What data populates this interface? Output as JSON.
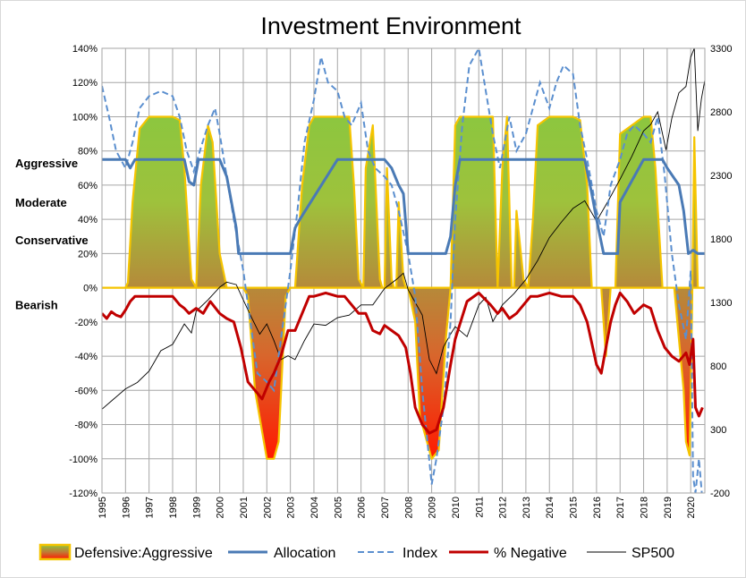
{
  "chart_data": {
    "type": "line",
    "title": "Investment Environment",
    "x_range": [
      1995.0,
      2020.6
    ],
    "x_ticks": [
      "1995",
      "1996",
      "1997",
      "1998",
      "1999",
      "2000",
      "2001",
      "2002",
      "2003",
      "2004",
      "2005",
      "2006",
      "2007",
      "2008",
      "2009",
      "2010",
      "2011",
      "2012",
      "2013",
      "2014",
      "2015",
      "2016",
      "2017",
      "2018",
      "2019",
      "2020"
    ],
    "y_left": {
      "ylim": [
        -120,
        140
      ],
      "ticks": [
        -120,
        -100,
        -80,
        -60,
        -40,
        -20,
        0,
        20,
        40,
        60,
        80,
        100,
        120,
        140
      ],
      "tick_labels": [
        "-120%",
        "-100%",
        "-80%",
        "-60%",
        "-40%",
        "-20%",
        "0%",
        "20%",
        "40%",
        "60%",
        "80%",
        "100%",
        "120%",
        "140%"
      ]
    },
    "y_right": {
      "ylim": [
        -200,
        3300
      ],
      "ticks": [
        -200,
        300,
        800,
        1300,
        1800,
        2300,
        2800,
        3300
      ],
      "tick_labels": [
        "-200",
        "300",
        "800",
        "1300",
        "1800",
        "2300",
        "2800",
        "3300"
      ]
    },
    "zone_labels": [
      {
        "text": "Aggressive",
        "y": 73
      },
      {
        "text": "Moderate",
        "y": 50
      },
      {
        "text": "Conservative",
        "y": 28
      },
      {
        "text": "Bearish",
        "y": -10
      }
    ],
    "legend_position": "bottom",
    "legend": [
      "Defensive:Aggressive",
      "Allocation",
      "Index",
      "% Negative",
      "SP500"
    ],
    "colors": {
      "area_green": "#8cc63f",
      "area_olive": "#b5893a",
      "area_red_top": "#d06030",
      "area_red_bottom": "#ff1a00",
      "area_border": "#f5c400",
      "allocation": "#4a7ab5",
      "index": "#5b8fcf",
      "negative": "#c00000",
      "sp500": "#000000",
      "grid": "#a6a6a6"
    },
    "series": [
      {
        "name": "Defensive:Aggressive",
        "axis": "left",
        "x": [
          1995.0,
          1996.0,
          1996.1,
          1996.3,
          1996.6,
          1997.0,
          1998.0,
          1998.3,
          1998.5,
          1998.8,
          1999.0,
          1999.2,
          1999.5,
          1999.7,
          2000.0,
          2000.3,
          2000.6,
          2000.8,
          2001.0,
          2001.2,
          2001.5,
          2002.0,
          2002.3,
          2002.5,
          2002.8,
          2003.0,
          2003.2,
          2003.5,
          2003.8,
          2004.0,
          2005.0,
          2005.5,
          2005.7,
          2005.9,
          2006.1,
          2006.2,
          2006.5,
          2006.8,
          2006.9,
          2007.0,
          2007.1,
          2007.3,
          2007.4,
          2007.5,
          2007.6,
          2007.8,
          2007.9,
          2008.0,
          2008.3,
          2008.5,
          2009.0,
          2009.3,
          2009.6,
          2009.8,
          2010.0,
          2010.2,
          2010.5,
          2011.0,
          2011.4,
          2011.6,
          2011.8,
          2012.0,
          2012.2,
          2012.4,
          2012.5,
          2012.6,
          2012.9,
          2013.1,
          2013.3,
          2013.5,
          2014.0,
          2015.0,
          2015.3,
          2015.6,
          2015.8,
          2016.0,
          2016.2,
          2016.4,
          2016.6,
          2016.8,
          2017.0,
          2018.0,
          2018.3,
          2018.5,
          2018.8,
          2019.0,
          2019.3,
          2019.5,
          2019.7,
          2019.8,
          2019.95,
          2020.05,
          2020.15,
          2020.3,
          2020.6
        ],
        "values": [
          0,
          0,
          3,
          50,
          93,
          100,
          100,
          98,
          70,
          5,
          0,
          60,
          95,
          85,
          20,
          0,
          0,
          0,
          0,
          -5,
          -60,
          -100,
          -100,
          -90,
          -5,
          0,
          0,
          60,
          95,
          100,
          100,
          100,
          60,
          5,
          0,
          70,
          95,
          5,
          0,
          0,
          70,
          5,
          0,
          0,
          50,
          5,
          0,
          0,
          -20,
          -75,
          -100,
          -95,
          -30,
          0,
          95,
          100,
          100,
          100,
          100,
          100,
          0,
          70,
          100,
          0,
          0,
          45,
          5,
          0,
          40,
          95,
          100,
          100,
          98,
          60,
          0,
          0,
          0,
          -40,
          0,
          0,
          90,
          100,
          100,
          70,
          0,
          0,
          0,
          -30,
          -60,
          -90,
          -98,
          -20,
          88,
          0,
          0
        ]
      },
      {
        "name": "Allocation",
        "axis": "left",
        "x": [
          1995.0,
          1996.0,
          1996.2,
          1996.4,
          1998.5,
          1998.7,
          1998.9,
          1999.1,
          1999.3,
          2000.0,
          2000.3,
          2000.7,
          2000.8,
          2002.8,
          2003.0,
          2003.2,
          2003.4,
          2005.0,
          2005.8,
          2006.0,
          2007.0,
          2007.3,
          2007.6,
          2007.8,
          2008.0,
          2009.6,
          2009.8,
          2009.9,
          2010.0,
          2010.2,
          2011.0,
          2012.0,
          2013.0,
          2014.0,
          2015.0,
          2015.5,
          2015.8,
          2016.0,
          2016.3,
          2016.6,
          2016.9,
          2017.0,
          2018.0,
          2018.5,
          2018.8,
          2019.0,
          2019.5,
          2019.7,
          2019.9,
          2020.1,
          2020.3,
          2020.6
        ],
        "values": [
          75,
          75,
          70,
          75,
          75,
          62,
          60,
          75,
          75,
          75,
          65,
          35,
          20,
          20,
          20,
          35,
          40,
          75,
          75,
          75,
          75,
          70,
          60,
          55,
          20,
          20,
          30,
          45,
          60,
          75,
          75,
          75,
          75,
          75,
          75,
          75,
          55,
          40,
          20,
          20,
          20,
          50,
          75,
          75,
          75,
          70,
          60,
          45,
          20,
          22,
          20,
          20
        ]
      },
      {
        "name": "Index",
        "axis": "left",
        "x": [
          1995.0,
          1995.3,
          1995.6,
          1996.0,
          1996.3,
          1996.6,
          1997.0,
          1997.5,
          1998.0,
          1998.3,
          1998.6,
          1998.9,
          1999.2,
          1999.5,
          1999.8,
          2000.0,
          2000.3,
          2000.6,
          2001.0,
          2001.3,
          2001.6,
          2002.0,
          2002.3,
          2002.6,
          2003.0,
          2003.3,
          2003.6,
          2004.0,
          2004.3,
          2004.6,
          2005.0,
          2005.3,
          2005.6,
          2006.0,
          2006.3,
          2006.6,
          2007.0,
          2007.3,
          2007.6,
          2008.0,
          2008.3,
          2008.6,
          2009.0,
          2009.2,
          2009.5,
          2009.8,
          2010.0,
          2010.3,
          2010.6,
          2011.0,
          2011.3,
          2011.6,
          2011.9,
          2012.3,
          2012.6,
          2013.0,
          2013.3,
          2013.6,
          2014.0,
          2014.3,
          2014.6,
          2015.0,
          2015.3,
          2015.6,
          2016.0,
          2016.3,
          2016.6,
          2017.0,
          2017.3,
          2017.6,
          2018.0,
          2018.3,
          2018.6,
          2018.9,
          2019.2,
          2019.5,
          2019.8,
          2020.0,
          2020.1,
          2020.2,
          2020.35,
          2020.5
        ],
        "values": [
          118,
          100,
          80,
          70,
          85,
          105,
          112,
          115,
          112,
          100,
          80,
          68,
          82,
          95,
          105,
          90,
          65,
          40,
          10,
          -20,
          -50,
          -55,
          -60,
          -30,
          10,
          45,
          85,
          110,
          135,
          120,
          115,
          100,
          95,
          108,
          80,
          70,
          65,
          60,
          45,
          20,
          -5,
          -60,
          -115,
          -100,
          -70,
          -20,
          40,
          95,
          130,
          140,
          115,
          90,
          70,
          100,
          80,
          90,
          105,
          120,
          105,
          120,
          130,
          125,
          95,
          75,
          45,
          30,
          60,
          75,
          90,
          95,
          90,
          85,
          100,
          65,
          20,
          -10,
          -30,
          10,
          -110,
          -120,
          -100,
          -125
        ]
      },
      {
        "name": "% Negative",
        "axis": "left",
        "x": [
          1995.0,
          1995.2,
          1995.4,
          1995.6,
          1995.8,
          1996.0,
          1996.2,
          1996.4,
          1996.6,
          1997.0,
          1997.5,
          1998.0,
          1998.3,
          1998.5,
          1998.7,
          1999.0,
          1999.3,
          1999.6,
          2000.0,
          2000.3,
          2000.6,
          2000.9,
          2001.2,
          2001.5,
          2001.8,
          2002.1,
          2002.3,
          2002.6,
          2002.9,
          2003.2,
          2003.5,
          2003.8,
          2004.0,
          2004.5,
          2005.0,
          2005.3,
          2005.6,
          2005.9,
          2006.2,
          2006.5,
          2006.8,
          2007.0,
          2007.3,
          2007.6,
          2007.9,
          2008.1,
          2008.3,
          2008.6,
          2008.9,
          2009.2,
          2009.5,
          2009.8,
          2010.0,
          2010.5,
          2011.0,
          2011.5,
          2011.8,
          2012.0,
          2012.3,
          2012.6,
          2012.9,
          2013.2,
          2013.5,
          2014.0,
          2014.5,
          2015.0,
          2015.3,
          2015.6,
          2016.0,
          2016.2,
          2016.4,
          2016.6,
          2016.8,
          2017.0,
          2017.3,
          2017.6,
          2018.0,
          2018.3,
          2018.6,
          2018.9,
          2019.2,
          2019.5,
          2019.8,
          2019.95,
          2020.1,
          2020.2,
          2020.35,
          2020.5
        ],
        "values": [
          -15,
          -18,
          -14,
          -16,
          -17,
          -13,
          -8,
          -5,
          -5,
          -5,
          -5,
          -5,
          -10,
          -12,
          -15,
          -12,
          -15,
          -8,
          -15,
          -18,
          -20,
          -35,
          -55,
          -60,
          -65,
          -55,
          -50,
          -40,
          -25,
          -25,
          -15,
          -5,
          -5,
          -3,
          -5,
          -5,
          -10,
          -15,
          -15,
          -25,
          -27,
          -22,
          -25,
          -28,
          -35,
          -50,
          -70,
          -80,
          -85,
          -83,
          -70,
          -45,
          -30,
          -8,
          -3,
          -10,
          -15,
          -12,
          -18,
          -15,
          -10,
          -5,
          -5,
          -3,
          -5,
          -5,
          -10,
          -20,
          -45,
          -50,
          -35,
          -20,
          -10,
          -3,
          -8,
          -15,
          -10,
          -12,
          -25,
          -35,
          -40,
          -43,
          -38,
          -45,
          -30,
          -70,
          -75,
          -70
        ]
      },
      {
        "name": "SP500",
        "axis": "right",
        "x": [
          1995.0,
          1995.5,
          1996.0,
          1996.5,
          1997.0,
          1997.5,
          1998.0,
          1998.5,
          1998.8,
          1999.0,
          1999.5,
          2000.0,
          2000.3,
          2000.7,
          2001.0,
          2001.3,
          2001.7,
          2002.0,
          2002.3,
          2002.6,
          2002.9,
          2003.2,
          2003.6,
          2004.0,
          2004.5,
          2005.0,
          2005.5,
          2006.0,
          2006.5,
          2007.0,
          2007.5,
          2007.8,
          2008.0,
          2008.3,
          2008.6,
          2008.9,
          2009.2,
          2009.5,
          2009.8,
          2010.0,
          2010.5,
          2011.0,
          2011.3,
          2011.6,
          2012.0,
          2012.5,
          2013.0,
          2013.5,
          2014.0,
          2014.5,
          2015.0,
          2015.5,
          2016.0,
          2016.5,
          2017.0,
          2017.5,
          2018.0,
          2018.3,
          2018.6,
          2018.95,
          2019.2,
          2019.5,
          2019.8,
          2020.0,
          2020.15,
          2020.3,
          2020.45,
          2020.6
        ],
        "values": [
          460,
          540,
          620,
          670,
          760,
          920,
          970,
          1130,
          1060,
          1230,
          1320,
          1420,
          1460,
          1440,
          1320,
          1200,
          1050,
          1130,
          1000,
          850,
          880,
          850,
          1000,
          1130,
          1120,
          1180,
          1200,
          1280,
          1280,
          1410,
          1480,
          1530,
          1400,
          1300,
          1200,
          850,
          740,
          950,
          1050,
          1110,
          1030,
          1280,
          1340,
          1150,
          1280,
          1370,
          1480,
          1630,
          1810,
          1930,
          2040,
          2100,
          1940,
          2100,
          2270,
          2450,
          2650,
          2700,
          2800,
          2500,
          2750,
          2950,
          3000,
          3230,
          3300,
          2650,
          2900,
          3050
        ]
      }
    ]
  }
}
